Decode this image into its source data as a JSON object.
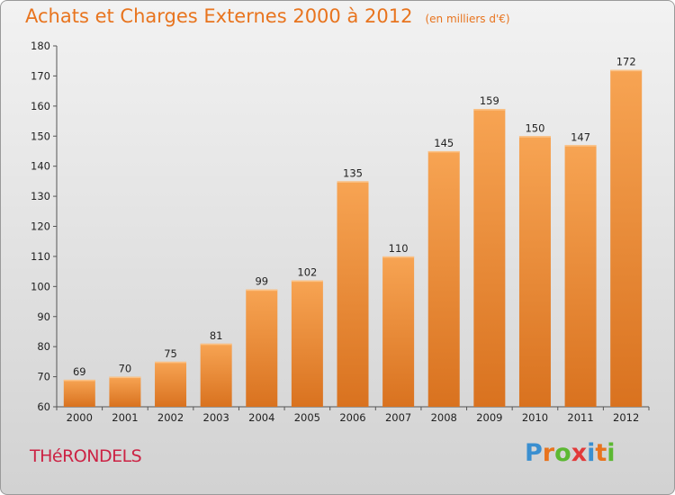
{
  "header": {
    "title": "Achats et Charges Externes 2000 à 2012",
    "unit": "(en milliers d'€)"
  },
  "footer": {
    "commune": "THéRONDELS",
    "logo_letters": [
      "P",
      "r",
      "o",
      "x",
      "i",
      "t",
      "i"
    ],
    "logo_colors": [
      "#3a8fd0",
      "#e8741e",
      "#5cb832",
      "#e23a3a",
      "#3a8fd0",
      "#e8741e",
      "#5cb832"
    ]
  },
  "chart_data": {
    "type": "bar",
    "categories": [
      "2000",
      "2001",
      "2002",
      "2003",
      "2004",
      "2005",
      "2006",
      "2007",
      "2008",
      "2009",
      "2010",
      "2011",
      "2012"
    ],
    "values": [
      69,
      70,
      75,
      81,
      99,
      102,
      135,
      110,
      145,
      159,
      150,
      147,
      172
    ],
    "title": "Achats et Charges Externes 2000 à 2012",
    "ylim": [
      60,
      180
    ],
    "yticks": [
      60,
      70,
      80,
      90,
      100,
      110,
      120,
      130,
      140,
      150,
      160,
      170,
      180
    ],
    "grid": false,
    "bar_color": "#f0923a"
  }
}
